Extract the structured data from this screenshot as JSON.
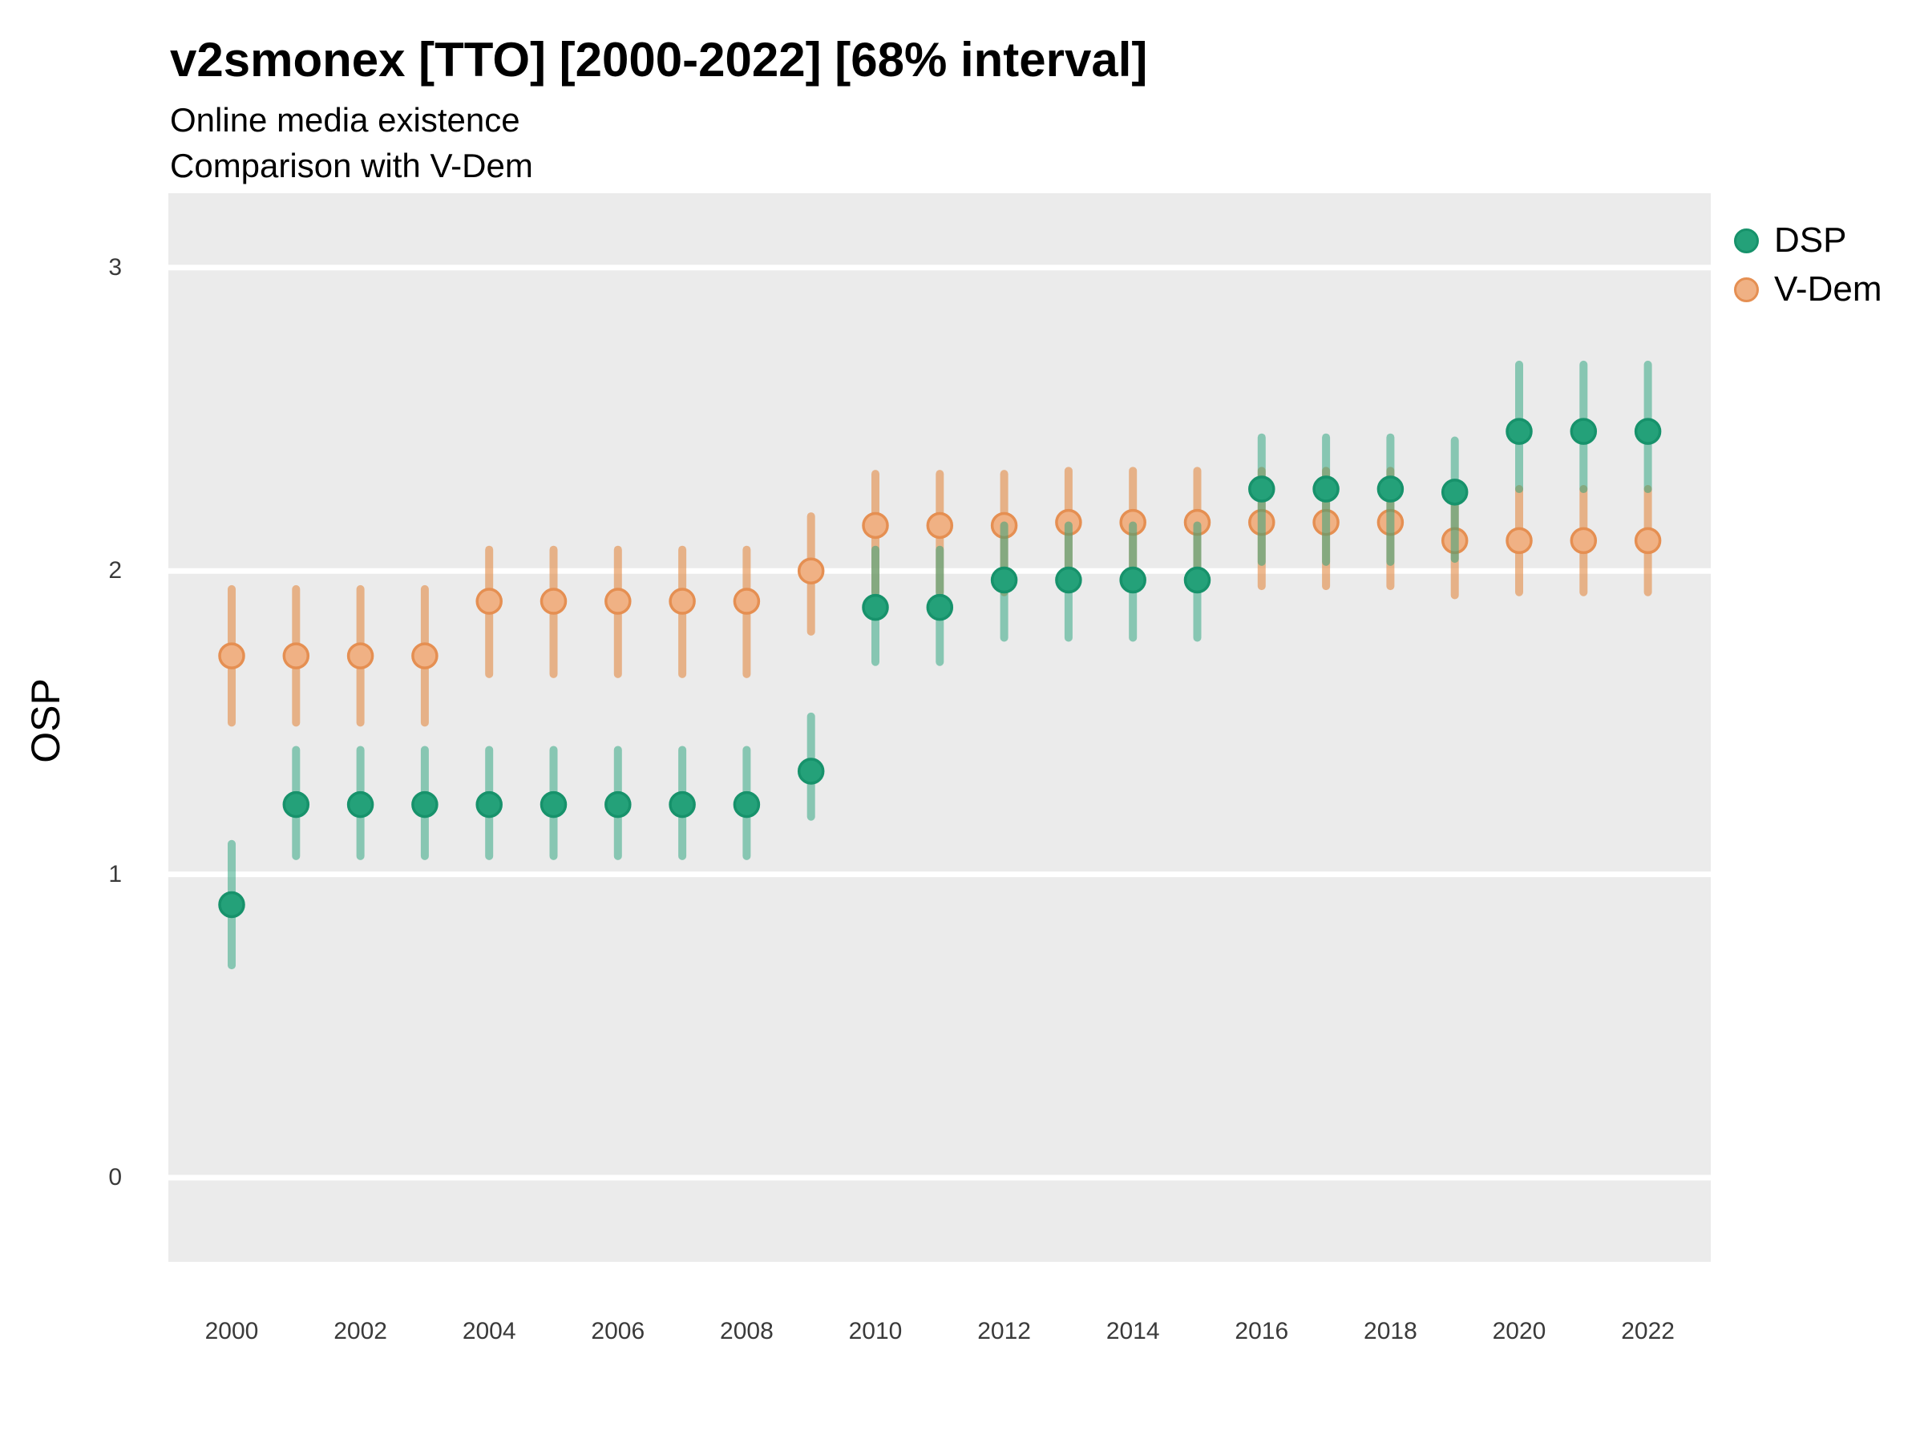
{
  "title": "v2smonex [TTO] [2000-2022] [68% interval]",
  "subtitle_line1": "Online media existence",
  "subtitle_line2": "Comparison with V-Dem",
  "y_axis_title": "OSP",
  "legend": {
    "entries": [
      {
        "label": "DSP"
      },
      {
        "label": "V-Dem"
      }
    ]
  },
  "colors": {
    "page_bg": "#FFFFFF",
    "panel_bg": "#EBEBEB",
    "gridline": "#FFFFFF",
    "tick_label": "#3A3A3A"
  },
  "chart_data": {
    "type": "pointrange",
    "title": "v2smonex [TTO] [2000-2022] [68% interval]",
    "subtitle": [
      "Online media existence",
      "Comparison with V-Dem"
    ],
    "xlabel": "",
    "ylabel": "OSP",
    "interval_level": "68%",
    "grid": "major-only",
    "legend_position": "right-top",
    "xticks": [
      2000,
      2002,
      2004,
      2006,
      2008,
      2010,
      2012,
      2014,
      2016,
      2018,
      2020,
      2022
    ],
    "yticks": [
      0,
      1,
      2,
      3
    ],
    "xlim": [
      1999.0,
      2023.0
    ],
    "ylim": [
      -0.28,
      3.25
    ],
    "series": [
      {
        "name": "DSP",
        "color_fill": "#24A179",
        "color_stroke": "#17926B",
        "color_line": "rgba(36,161,121,0.5)",
        "points": [
          {
            "year": 2000,
            "mean": 0.9,
            "lo": 0.7,
            "hi": 1.1
          },
          {
            "year": 2001,
            "mean": 1.23,
            "lo": 1.06,
            "hi": 1.41
          },
          {
            "year": 2002,
            "mean": 1.23,
            "lo": 1.06,
            "hi": 1.41
          },
          {
            "year": 2003,
            "mean": 1.23,
            "lo": 1.06,
            "hi": 1.41
          },
          {
            "year": 2004,
            "mean": 1.23,
            "lo": 1.06,
            "hi": 1.41
          },
          {
            "year": 2005,
            "mean": 1.23,
            "lo": 1.06,
            "hi": 1.41
          },
          {
            "year": 2006,
            "mean": 1.23,
            "lo": 1.06,
            "hi": 1.41
          },
          {
            "year": 2007,
            "mean": 1.23,
            "lo": 1.06,
            "hi": 1.41
          },
          {
            "year": 2008,
            "mean": 1.23,
            "lo": 1.06,
            "hi": 1.41
          },
          {
            "year": 2009,
            "mean": 1.34,
            "lo": 1.19,
            "hi": 1.52
          },
          {
            "year": 2010,
            "mean": 1.88,
            "lo": 1.7,
            "hi": 2.07
          },
          {
            "year": 2011,
            "mean": 1.88,
            "lo": 1.7,
            "hi": 2.07
          },
          {
            "year": 2012,
            "mean": 1.97,
            "lo": 1.78,
            "hi": 2.15
          },
          {
            "year": 2013,
            "mean": 1.97,
            "lo": 1.78,
            "hi": 2.15
          },
          {
            "year": 2014,
            "mean": 1.97,
            "lo": 1.78,
            "hi": 2.15
          },
          {
            "year": 2015,
            "mean": 1.97,
            "lo": 1.78,
            "hi": 2.15
          },
          {
            "year": 2016,
            "mean": 2.27,
            "lo": 2.03,
            "hi": 2.44
          },
          {
            "year": 2017,
            "mean": 2.27,
            "lo": 2.03,
            "hi": 2.44
          },
          {
            "year": 2018,
            "mean": 2.27,
            "lo": 2.03,
            "hi": 2.44
          },
          {
            "year": 2019,
            "mean": 2.26,
            "lo": 2.04,
            "hi": 2.43
          },
          {
            "year": 2020,
            "mean": 2.46,
            "lo": 2.27,
            "hi": 2.68
          },
          {
            "year": 2021,
            "mean": 2.46,
            "lo": 2.27,
            "hi": 2.68
          },
          {
            "year": 2022,
            "mean": 2.46,
            "lo": 2.27,
            "hi": 2.68
          }
        ]
      },
      {
        "name": "V-Dem",
        "color_fill": "#F0B184",
        "color_stroke": "#E58F52",
        "color_line": "rgba(226,138,69,0.6)",
        "points": [
          {
            "year": 2000,
            "mean": 1.72,
            "lo": 1.5,
            "hi": 1.94
          },
          {
            "year": 2001,
            "mean": 1.72,
            "lo": 1.5,
            "hi": 1.94
          },
          {
            "year": 2002,
            "mean": 1.72,
            "lo": 1.5,
            "hi": 1.94
          },
          {
            "year": 2003,
            "mean": 1.72,
            "lo": 1.5,
            "hi": 1.94
          },
          {
            "year": 2004,
            "mean": 1.9,
            "lo": 1.66,
            "hi": 2.07
          },
          {
            "year": 2005,
            "mean": 1.9,
            "lo": 1.66,
            "hi": 2.07
          },
          {
            "year": 2006,
            "mean": 1.9,
            "lo": 1.66,
            "hi": 2.07
          },
          {
            "year": 2007,
            "mean": 1.9,
            "lo": 1.66,
            "hi": 2.07
          },
          {
            "year": 2008,
            "mean": 1.9,
            "lo": 1.66,
            "hi": 2.07
          },
          {
            "year": 2009,
            "mean": 2.0,
            "lo": 1.8,
            "hi": 2.18
          },
          {
            "year": 2010,
            "mean": 2.15,
            "lo": 1.93,
            "hi": 2.32
          },
          {
            "year": 2011,
            "mean": 2.15,
            "lo": 1.93,
            "hi": 2.32
          },
          {
            "year": 2012,
            "mean": 2.15,
            "lo": 1.93,
            "hi": 2.32
          },
          {
            "year": 2013,
            "mean": 2.16,
            "lo": 1.94,
            "hi": 2.33
          },
          {
            "year": 2014,
            "mean": 2.16,
            "lo": 1.94,
            "hi": 2.33
          },
          {
            "year": 2015,
            "mean": 2.16,
            "lo": 1.94,
            "hi": 2.33
          },
          {
            "year": 2016,
            "mean": 2.16,
            "lo": 1.95,
            "hi": 2.33
          },
          {
            "year": 2017,
            "mean": 2.16,
            "lo": 1.95,
            "hi": 2.33
          },
          {
            "year": 2018,
            "mean": 2.16,
            "lo": 1.95,
            "hi": 2.33
          },
          {
            "year": 2019,
            "mean": 2.1,
            "lo": 1.92,
            "hi": 2.27
          },
          {
            "year": 2020,
            "mean": 2.1,
            "lo": 1.93,
            "hi": 2.27
          },
          {
            "year": 2021,
            "mean": 2.1,
            "lo": 1.93,
            "hi": 2.27
          },
          {
            "year": 2022,
            "mean": 2.1,
            "lo": 1.93,
            "hi": 2.27
          }
        ]
      }
    ]
  }
}
